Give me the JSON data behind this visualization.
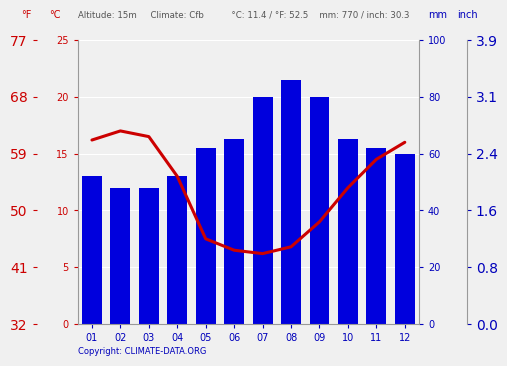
{
  "months": [
    "01",
    "02",
    "03",
    "04",
    "05",
    "06",
    "07",
    "08",
    "09",
    "10",
    "11",
    "12"
  ],
  "precipitation_mm": [
    52,
    48,
    48,
    52,
    62,
    65,
    80,
    86,
    80,
    65,
    62,
    60
  ],
  "temperature_c": [
    16.2,
    17.0,
    16.5,
    13.0,
    7.5,
    6.5,
    6.2,
    6.8,
    9.0,
    12.0,
    14.5,
    16.0
  ],
  "bar_color": "#0000dd",
  "line_color": "#cc0000",
  "background_color": "#f0f0f0",
  "left_yticks_c": [
    0,
    5,
    10,
    15,
    20,
    25
  ],
  "left_yticks_f": [
    32,
    41,
    50,
    59,
    68,
    77
  ],
  "right_yticks_mm": [
    0,
    20,
    40,
    60,
    80,
    100
  ],
  "right_yticks_inch": [
    "0.0",
    "0.8",
    "1.6",
    "2.4",
    "3.1",
    "3.9"
  ],
  "ylim_mm": [
    0,
    100
  ],
  "temp_max": 25,
  "header_line1_f": "°F",
  "header_line1_c": "°C",
  "header_middle": "Altitude: 15m     Climate: Cfb          °C: 11.4 / °F: 52.5    mm: 770 / inch: 30.3",
  "header_mm": "mm",
  "header_inch": "inch",
  "copyright_text": "Copyright: CLIMATE-DATA.ORG"
}
